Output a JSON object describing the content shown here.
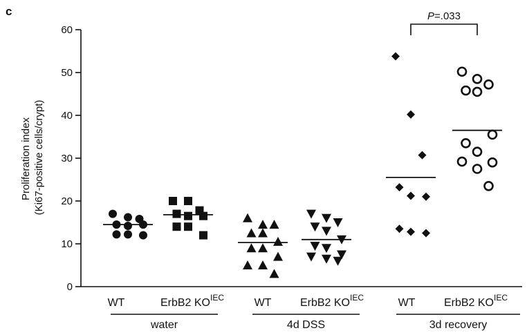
{
  "panel_label": "c",
  "chart_data": {
    "type": "scatter",
    "ylabel_line1": "Proliferation index",
    "ylabel_line2": "(Ki67-positive cells/crypt)",
    "ylim": [
      0,
      60
    ],
    "yticks": [
      0,
      10,
      20,
      30,
      40,
      50,
      60
    ],
    "groups": [
      {
        "label": "water",
        "series": [
          0,
          1
        ]
      },
      {
        "label": "4d DSS",
        "series": [
          2,
          3
        ]
      },
      {
        "label": "3d recovery",
        "series": [
          4,
          5
        ]
      }
    ],
    "series": [
      {
        "category": "WT",
        "category_sup": "",
        "marker": "circle",
        "mean": 14.5,
        "points": [
          17.0,
          16.2,
          15.8,
          14.5,
          14.2,
          14.5,
          12.2,
          12.2,
          12.0
        ]
      },
      {
        "category": "ErbB2 KO",
        "category_sup": "IEC",
        "marker": "square",
        "mean": 16.8,
        "points": [
          20.0,
          20.0,
          17.8,
          17.0,
          16.5,
          16.5,
          14.0,
          14.0,
          12.0
        ]
      },
      {
        "category": "WT",
        "category_sup": "",
        "marker": "triangle-up",
        "mean": 10.3,
        "points": [
          16.0,
          14.5,
          14.5,
          12.5,
          12.5,
          10.5,
          9.0,
          9.0,
          7.0,
          5.0,
          5.0,
          3.0
        ]
      },
      {
        "category": "ErbB2 KO",
        "category_sup": "IEC",
        "marker": "triangle-down",
        "mean": 11.0,
        "points": [
          17.0,
          16.0,
          15.0,
          14.0,
          13.0,
          11.0,
          9.5,
          9.0,
          7.5,
          7.0,
          6.5,
          6.0
        ]
      },
      {
        "category": "WT",
        "category_sup": "",
        "marker": "diamond",
        "mean": 25.5,
        "points": [
          53.8,
          40.2,
          30.7,
          23.2,
          21.2,
          21.0,
          13.5,
          12.8,
          12.5
        ]
      },
      {
        "category": "ErbB2 KO",
        "category_sup": "IEC",
        "marker": "open-circle",
        "mean": 36.5,
        "points": [
          50.2,
          48.5,
          47.2,
          45.8,
          45.5,
          35.5,
          33.5,
          31.5,
          29.0,
          29.2,
          27.5,
          23.5
        ]
      }
    ],
    "annotation": {
      "prefix": "P",
      "text": "=.033",
      "between": [
        4,
        5
      ]
    }
  }
}
